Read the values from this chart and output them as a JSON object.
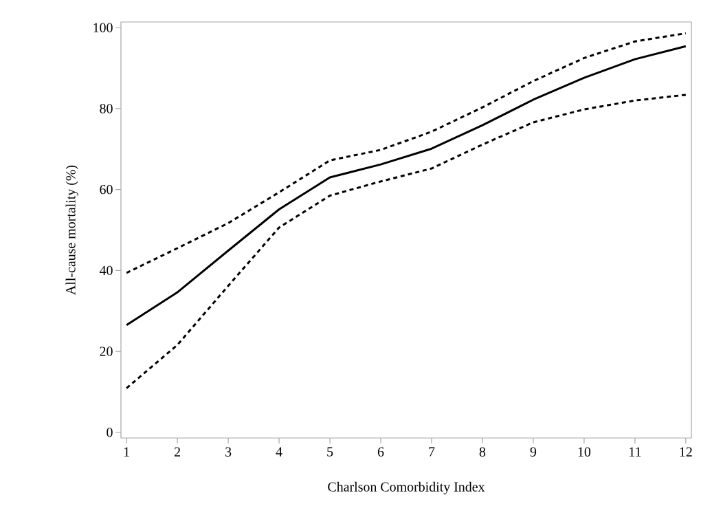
{
  "chart_data": {
    "type": "line",
    "xlabel": "Charlson Comorbidity Index",
    "ylabel": "All-cause mortality (%)",
    "x": [
      1,
      2,
      3,
      4,
      5,
      6,
      7,
      8,
      9,
      10,
      11,
      12
    ],
    "series": [
      {
        "color": "#000000",
        "line_style": "solid",
        "values": [
          26.5,
          34.6,
          44.9,
          55.1,
          63.0,
          66.2,
          70.1,
          75.9,
          82.2,
          87.6,
          92.2,
          95.4
        ]
      },
      {
        "color": "#000000",
        "line_style": "dotted",
        "values": [
          39.4,
          45.5,
          51.7,
          59.3,
          67.2,
          69.8,
          74.3,
          80.3,
          86.8,
          92.5,
          96.6,
          98.6
        ]
      },
      {
        "color": "#000000",
        "line_style": "dotted",
        "values": [
          10.9,
          21.6,
          36.2,
          50.6,
          58.5,
          62.0,
          65.2,
          71.1,
          76.6,
          79.8,
          82.0,
          83.4
        ]
      }
    ],
    "xlim": [
      0.89,
      12.11
    ],
    "ylim": [
      -1.4,
      101.4
    ],
    "xticks": [
      1,
      2,
      3,
      4,
      5,
      6,
      7,
      8,
      9,
      10,
      11,
      12
    ],
    "yticks": [
      0,
      20,
      40,
      60,
      80,
      100
    ],
    "marker": "none"
  }
}
